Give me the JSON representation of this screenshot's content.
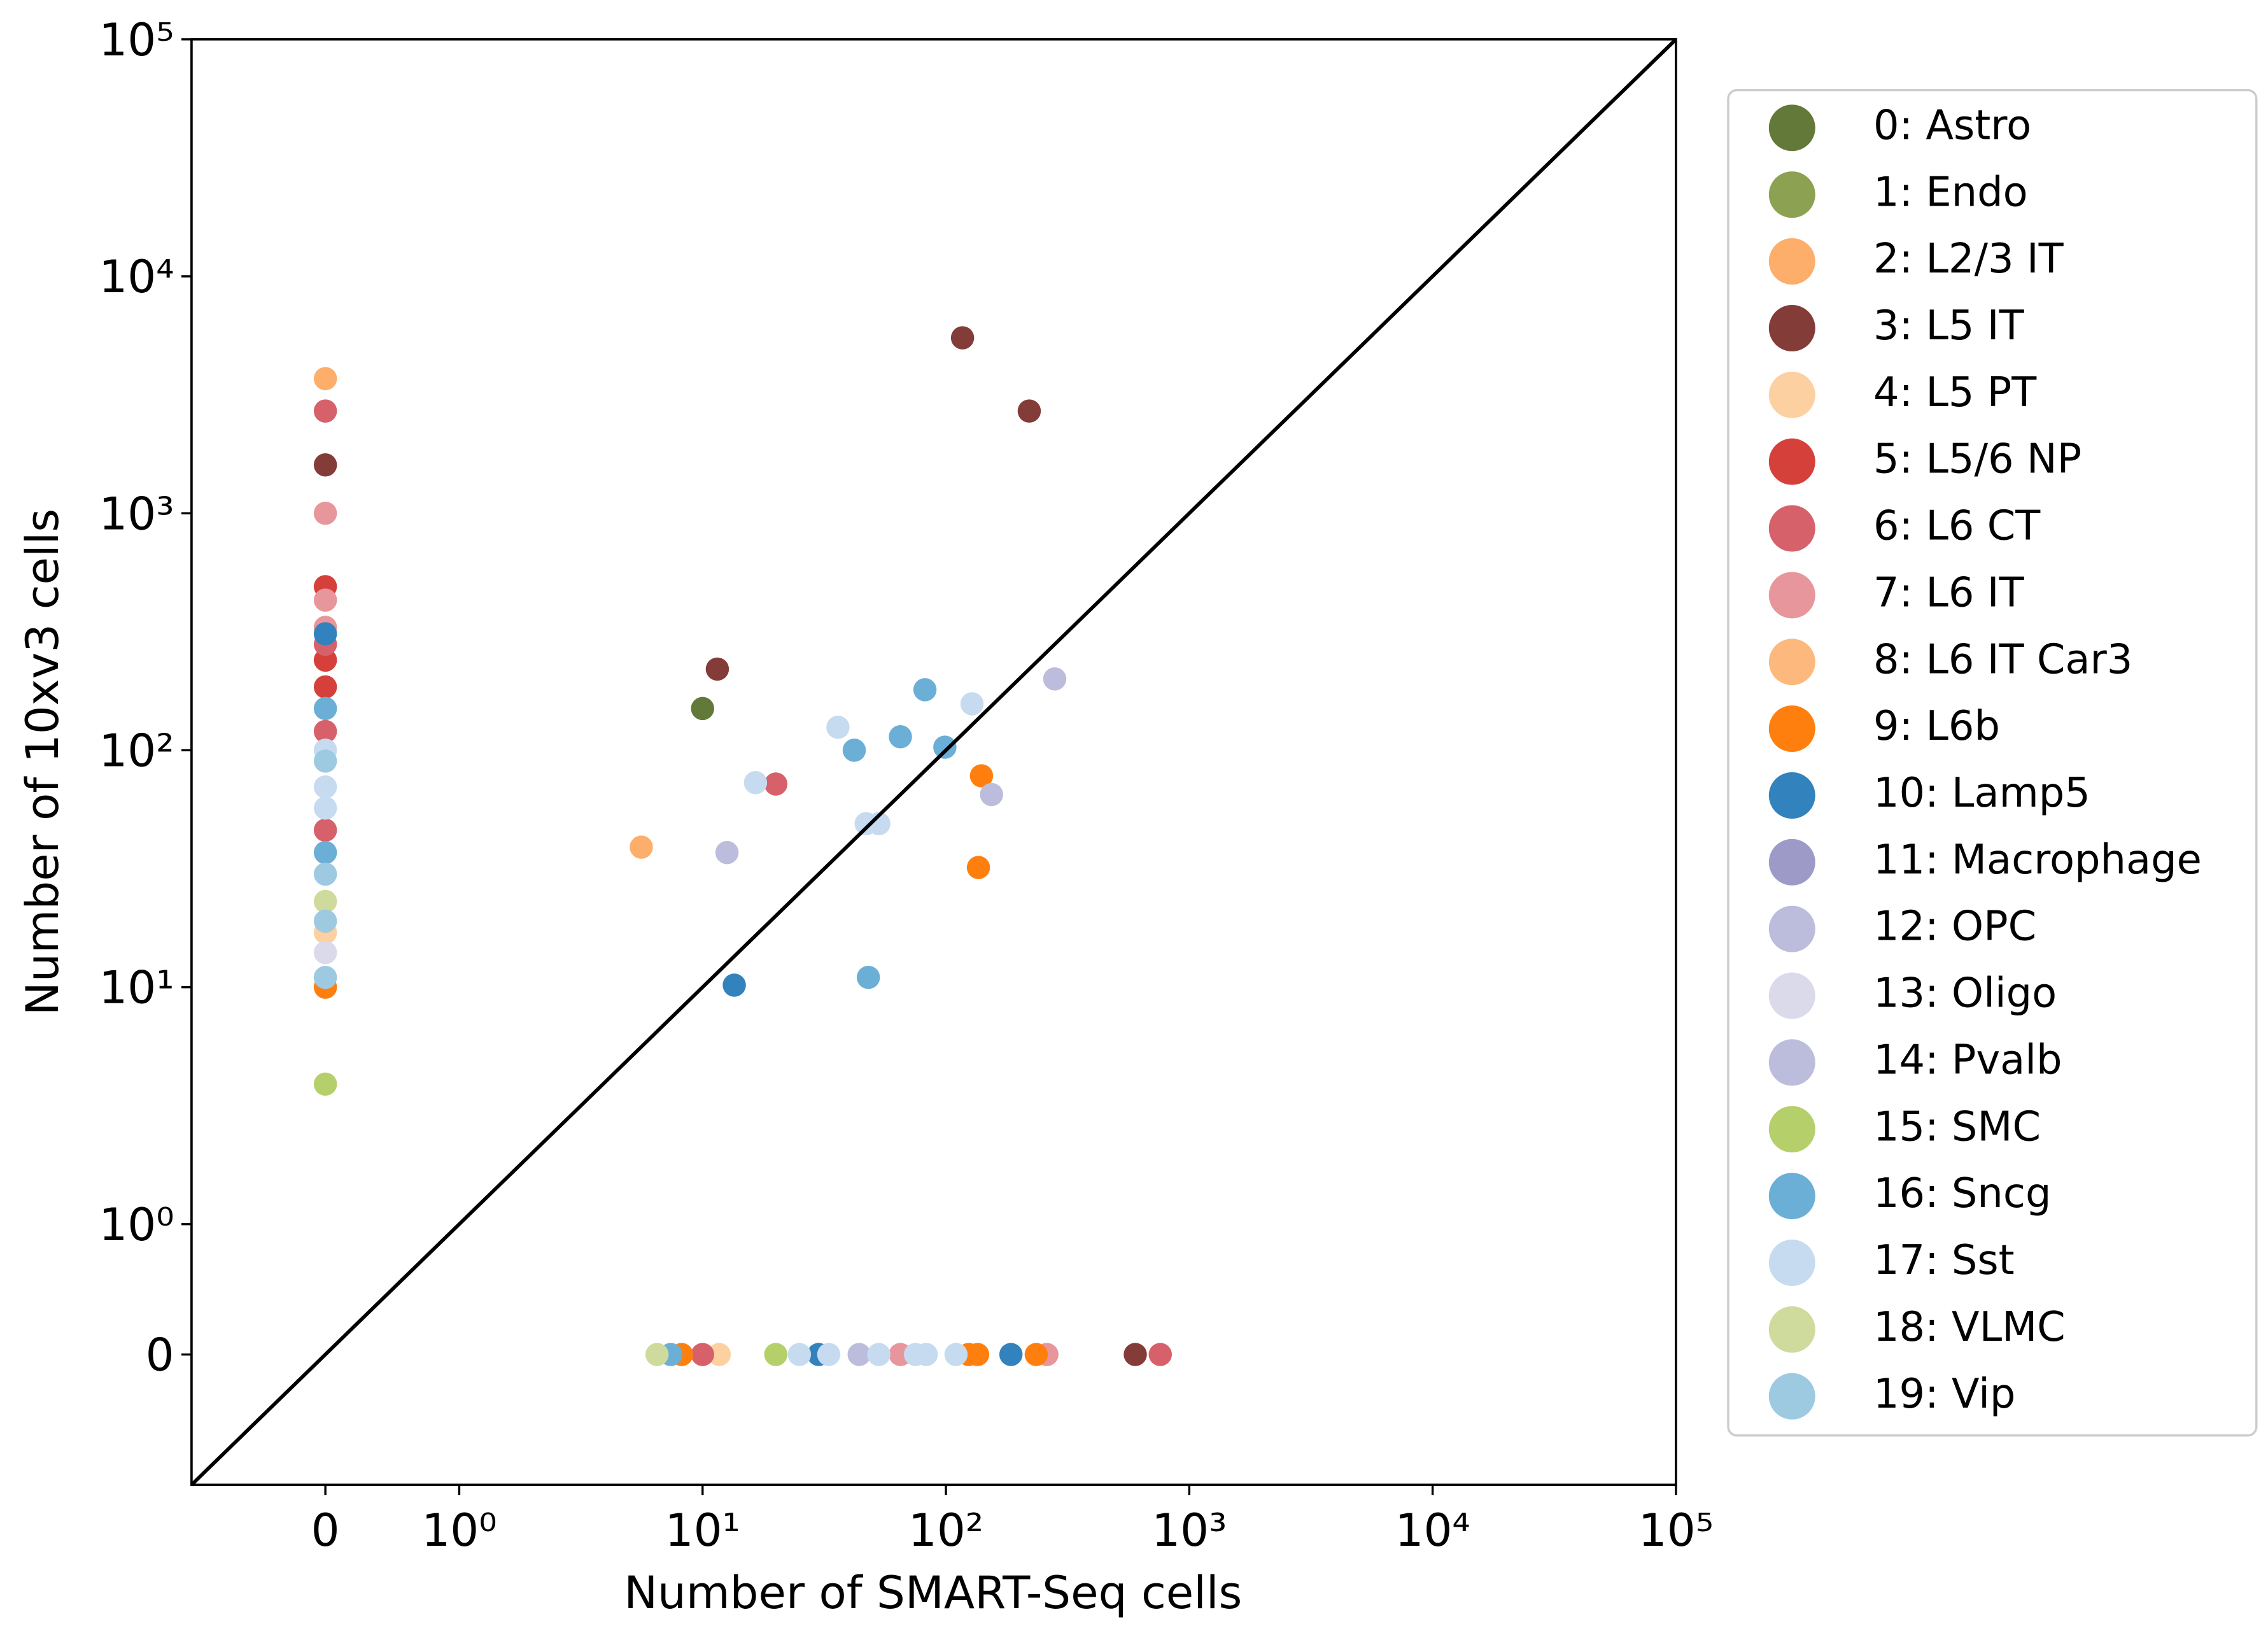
{
  "chart_data": {
    "type": "scatter",
    "x_label": "Number of SMART-Seq cells",
    "y_label": "Number of 10xv3 cells",
    "x_scale": "symlog",
    "y_scale": "symlog",
    "xlim": [
      -1,
      100000
    ],
    "ylim": [
      -1,
      100000
    ],
    "xticks": [
      0,
      {
        "value": 1,
        "label": "10⁰"
      },
      {
        "value": 10,
        "label": "10¹"
      },
      {
        "value": 100,
        "label": "10²"
      },
      {
        "value": 1000,
        "label": "10³"
      },
      {
        "value": 10000,
        "label": "10⁴"
      },
      {
        "value": 100000,
        "label": "10⁵"
      }
    ],
    "yticks": [
      0,
      {
        "value": 1,
        "label": "10⁰"
      },
      {
        "value": 10,
        "label": "10¹"
      },
      {
        "value": 100,
        "label": "10²"
      },
      {
        "value": 1000,
        "label": "10³"
      },
      {
        "value": 10000,
        "label": "10⁴"
      },
      {
        "value": 100000,
        "label": "10⁵"
      }
    ],
    "grid": false,
    "legend": "outside right",
    "series": [
      {
        "name": "0: Astro",
        "color": "#637939",
        "x": [
          10
        ],
        "y": [
          150
        ]
      },
      {
        "name": "1: Endo",
        "color": "#8ca252",
        "x": [],
        "y": []
      },
      {
        "name": "2: L2/3 IT",
        "color": "#fdae6b",
        "x": [
          0,
          5.6
        ],
        "y": [
          3700,
          39
        ]
      },
      {
        "name": "3: L5 IT",
        "color": "#843c39",
        "x": [
          0,
          117,
          220,
          11.5,
          600
        ],
        "y": [
          1600,
          5500,
          2700,
          220,
          0
        ]
      },
      {
        "name": "4: L5 PT",
        "color": "#fdd0a2",
        "x": [
          0,
          11.7
        ],
        "y": [
          17,
          0
        ]
      },
      {
        "name": "5: L5/6 NP",
        "color": "#d6403a",
        "x": [
          0,
          0,
          0
        ],
        "y": [
          490,
          240,
          185
        ]
      },
      {
        "name": "6: L6 CT",
        "color": "#d6616b",
        "x": [
          0,
          0,
          0,
          0,
          20,
          10,
          760
        ],
        "y": [
          2700,
          280,
          120,
          46,
          72,
          0,
          0
        ]
      },
      {
        "name": "7: L6 IT",
        "color": "#e7969c",
        "x": [
          0,
          0,
          0,
          65,
          260
        ],
        "y": [
          1000,
          430,
          330,
          0,
          0
        ]
      },
      {
        "name": "8: L6 IT Car3",
        "color": "#fdb97d",
        "x": [],
        "y": []
      },
      {
        "name": "9: L6b",
        "color": "#ff7f0e",
        "x": [
          0,
          140,
          136,
          8.2,
          124,
          135,
          235
        ],
        "y": [
          10,
          78,
          32,
          0,
          0,
          0,
          0
        ]
      },
      {
        "name": "10: Lamp5",
        "color": "#3182bd",
        "x": [
          0,
          13.5,
          30,
          185
        ],
        "y": [
          310,
          10.2,
          0,
          0
        ]
      },
      {
        "name": "11: Macrophage",
        "color": "#9e9ac8",
        "x": [],
        "y": []
      },
      {
        "name": "12: OPC",
        "color": "#bcbddc",
        "x": [],
        "y": []
      },
      {
        "name": "13: Oligo",
        "color": "#dadaeb",
        "x": [
          0
        ],
        "y": [
          14
        ]
      },
      {
        "name": "14: Pvalb",
        "color": "#bcbddc",
        "x": [
          280,
          154,
          12.6,
          44
        ],
        "y": [
          200,
          65,
          37,
          0
        ]
      },
      {
        "name": "15: SMC",
        "color": "#b5cf6b",
        "x": [
          0,
          20
        ],
        "y": [
          3.9,
          0
        ]
      },
      {
        "name": "16: Sncg",
        "color": "#6baed6",
        "x": [
          0,
          0,
          42,
          82,
          65,
          99,
          48,
          7.4
        ],
        "y": [
          150,
          37,
          100,
          180,
          114,
          103,
          11,
          0
        ]
      },
      {
        "name": "17: Sst",
        "color": "#c6dbef",
        "x": [
          0,
          0,
          0,
          16.5,
          36,
          128,
          47,
          53,
          25,
          33,
          53,
          75,
          83,
          110
        ],
        "y": [
          100,
          70,
          57,
          73,
          125,
          157,
          49,
          49,
          0,
          0,
          0,
          0,
          0,
          0
        ]
      },
      {
        "name": "18: VLMC",
        "color": "#cedb9c",
        "x": [
          0,
          6.5
        ],
        "y": [
          23,
          0
        ]
      },
      {
        "name": "19: Vip",
        "color": "#9ecae1",
        "x": [
          0,
          0,
          0,
          0
        ],
        "y": [
          90,
          30,
          19,
          11
        ]
      }
    ]
  }
}
